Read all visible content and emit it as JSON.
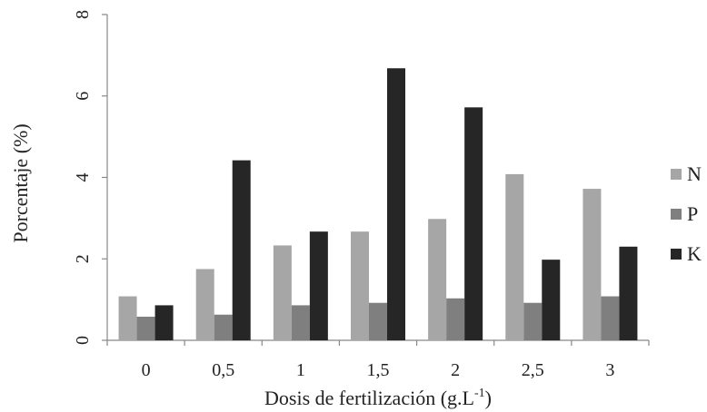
{
  "chart_data": {
    "type": "bar",
    "categories": [
      "0",
      "0,5",
      "1",
      "1,5",
      "2",
      "2,5",
      "3"
    ],
    "series": [
      {
        "name": "N",
        "color": "#a6a6a6",
        "values": [
          1.08,
          1.75,
          2.33,
          2.67,
          2.98,
          4.08,
          3.72
        ]
      },
      {
        "name": "P",
        "color": "#7f7f7f",
        "values": [
          0.58,
          0.63,
          0.86,
          0.92,
          1.03,
          0.92,
          1.08
        ]
      },
      {
        "name": "K",
        "color": "#262626",
        "values": [
          0.86,
          4.42,
          2.67,
          6.68,
          5.72,
          1.98,
          2.3
        ]
      }
    ],
    "xlabel": "Dosis de fertilización (g.L",
    "xlabel_superscript": "-1",
    "xlabel_suffix": ")",
    "ylabel": "Porcentaje (%)",
    "ylim": [
      0,
      8
    ],
    "yticks": [
      "0",
      "2",
      "4",
      "6",
      "8"
    ],
    "ytick_values": [
      0,
      2,
      4,
      6,
      8
    ],
    "ylabel_rotation": "vertical",
    "ytick_rotation": "vertical",
    "legend_position": "right",
    "grid": false
  }
}
